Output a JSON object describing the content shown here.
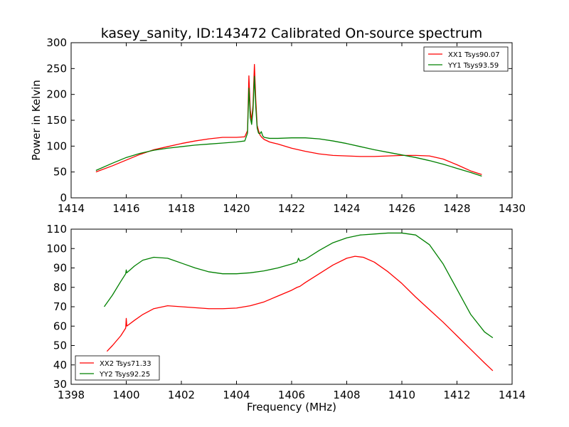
{
  "chart_data": [
    {
      "type": "line",
      "title": "kasey_sanity, ID:143472 Calibrated On-source spectrum",
      "xlabel": "",
      "ylabel": "Power in Kelvin",
      "xlim": [
        1414,
        1430
      ],
      "ylim": [
        0,
        300
      ],
      "xticks": [
        1414,
        1416,
        1418,
        1420,
        1422,
        1424,
        1426,
        1428,
        1430
      ],
      "yticks": [
        0,
        50,
        100,
        150,
        200,
        250,
        300
      ],
      "grid": false,
      "legend_placement": "top-right",
      "series": [
        {
          "name": "XX1 Tsys90.07",
          "color": "#ff0000",
          "x": [
            1414.9,
            1415.5,
            1416.0,
            1416.5,
            1417.0,
            1417.5,
            1418.0,
            1418.5,
            1419.0,
            1419.5,
            1420.0,
            1420.3,
            1420.4,
            1420.45,
            1420.5,
            1420.55,
            1420.6,
            1420.65,
            1420.7,
            1420.75,
            1420.8,
            1420.85,
            1420.9,
            1421.0,
            1421.2,
            1421.5,
            1422.0,
            1422.5,
            1423.0,
            1423.5,
            1424.0,
            1424.5,
            1425.0,
            1425.5,
            1426.0,
            1426.5,
            1427.0,
            1427.5,
            1428.0,
            1428.5,
            1428.9
          ],
          "y": [
            50,
            62,
            73,
            84,
            93,
            99,
            105,
            110,
            114,
            117,
            117,
            118,
            130,
            236,
            170,
            150,
            180,
            258,
            190,
            140,
            130,
            122,
            118,
            113,
            108,
            104,
            96,
            90,
            85,
            82,
            81,
            80,
            80,
            81,
            82,
            82,
            81,
            75,
            64,
            52,
            45
          ]
        },
        {
          "name": "YY1 Tsys93.59",
          "color": "#008000",
          "x": [
            1414.9,
            1415.5,
            1416.0,
            1416.5,
            1417.0,
            1417.5,
            1418.0,
            1418.5,
            1419.0,
            1419.5,
            1420.0,
            1420.3,
            1420.4,
            1420.45,
            1420.5,
            1420.55,
            1420.6,
            1420.65,
            1420.7,
            1420.75,
            1420.8,
            1420.85,
            1420.9,
            1420.95,
            1421.0,
            1421.2,
            1421.5,
            1422.0,
            1422.5,
            1423.0,
            1423.5,
            1424.0,
            1424.5,
            1425.0,
            1425.5,
            1426.0,
            1426.5,
            1427.0,
            1427.5,
            1428.0,
            1428.5,
            1428.9
          ],
          "y": [
            53,
            67,
            78,
            86,
            92,
            96,
            99,
            102,
            104,
            106,
            108,
            110,
            125,
            212,
            155,
            142,
            170,
            235,
            175,
            135,
            125,
            124,
            128,
            120,
            117,
            115,
            115,
            116,
            116,
            114,
            110,
            105,
            99,
            93,
            88,
            83,
            78,
            72,
            65,
            57,
            49,
            42
          ]
        }
      ]
    },
    {
      "type": "line",
      "title": "",
      "xlabel": "Frequency (MHz)",
      "ylabel": "",
      "xlim": [
        1398,
        1414
      ],
      "ylim": [
        30,
        110
      ],
      "xticks": [
        1398,
        1400,
        1402,
        1404,
        1406,
        1408,
        1410,
        1412,
        1414
      ],
      "yticks": [
        30,
        40,
        50,
        60,
        70,
        80,
        90,
        100,
        110
      ],
      "grid": false,
      "legend_placement": "lower-left",
      "series": [
        {
          "name": "XX2 Tsys71.33",
          "color": "#ff0000",
          "x": [
            1399.3,
            1399.5,
            1399.8,
            1399.98,
            1400.0,
            1400.02,
            1400.3,
            1400.6,
            1401.0,
            1401.5,
            1402.0,
            1402.5,
            1403.0,
            1403.5,
            1404.0,
            1404.5,
            1405.0,
            1405.5,
            1406.0,
            1406.2,
            1406.3,
            1406.5,
            1407.0,
            1407.5,
            1408.0,
            1408.3,
            1408.6,
            1409.0,
            1409.5,
            1410.0,
            1410.5,
            1411.0,
            1411.5,
            1412.0,
            1412.5,
            1413.0,
            1413.3
          ],
          "y": [
            47,
            50,
            55,
            59,
            64,
            60,
            63,
            66,
            69,
            70.5,
            70,
            69.5,
            69,
            69,
            69.3,
            70.5,
            72.5,
            75.5,
            78.5,
            80,
            80.5,
            82.5,
            87,
            91.5,
            95,
            96,
            95.5,
            93,
            88,
            82,
            75,
            68.5,
            62,
            55,
            48,
            41,
            37
          ]
        },
        {
          "name": "YY2 Tsys92.25",
          "color": "#008000",
          "x": [
            1399.2,
            1399.5,
            1399.8,
            1399.98,
            1400.0,
            1400.02,
            1400.3,
            1400.6,
            1401.0,
            1401.5,
            1402.0,
            1402.5,
            1403.0,
            1403.5,
            1404.0,
            1404.5,
            1405.0,
            1405.5,
            1406.0,
            1406.2,
            1406.25,
            1406.3,
            1406.5,
            1407.0,
            1407.5,
            1408.0,
            1408.5,
            1409.0,
            1409.5,
            1410.0,
            1410.5,
            1411.0,
            1411.5,
            1412.0,
            1412.5,
            1413.0,
            1413.3
          ],
          "y": [
            70,
            76,
            83,
            87,
            89,
            87.5,
            91,
            94,
            95.5,
            95,
            92.5,
            90,
            88,
            87,
            87,
            87.5,
            88.5,
            90,
            92,
            93,
            95,
            93.5,
            94.5,
            99,
            103,
            105.5,
            107,
            107.5,
            108,
            108,
            107,
            102,
            92,
            79,
            66,
            57,
            54
          ]
        }
      ]
    }
  ]
}
